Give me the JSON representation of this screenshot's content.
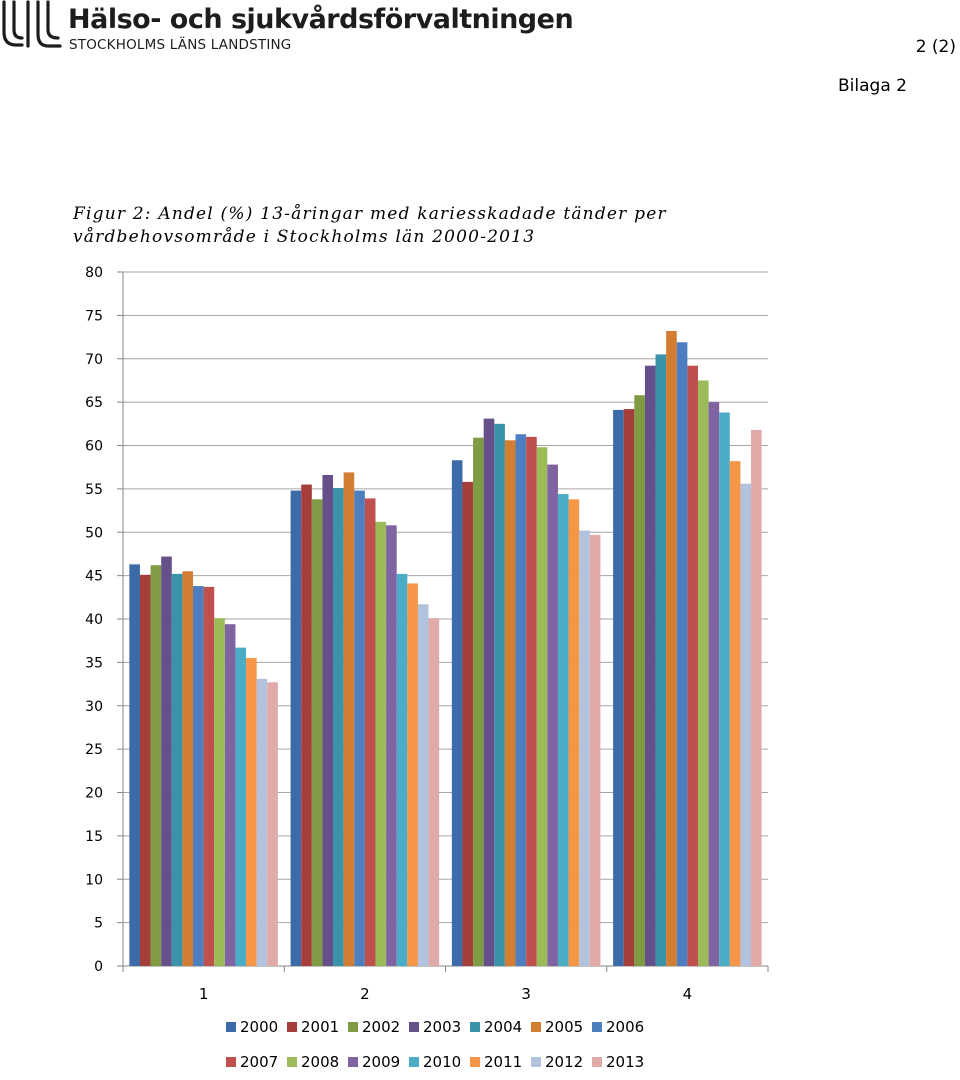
{
  "header": {
    "org_name": "Hälso- och sjukvårdsförvaltningen",
    "org_sub": "STOCKHOLMS LÄNS LANDSTING",
    "page_number": "2 (2)",
    "appendix": "Bilaga 2"
  },
  "figure": {
    "title_line1": "Figur 2: Andel (%) 13-åringar med kariesskadade tänder per",
    "title_line2": "vårdbehovsområde i Stockholms län 2000-2013"
  },
  "chart_data": {
    "type": "bar",
    "categories": [
      "1",
      "2",
      "3",
      "4"
    ],
    "ylim": [
      0,
      80
    ],
    "yticks": [
      0,
      5,
      10,
      15,
      20,
      25,
      30,
      35,
      40,
      45,
      50,
      55,
      60,
      65,
      70,
      75,
      80
    ],
    "ytick_labels": [
      "0",
      "5",
      "10",
      "15",
      "20",
      "25",
      "30",
      "35",
      "40",
      "45",
      "50",
      "55",
      "60",
      "65",
      "70",
      "75",
      "80"
    ],
    "grid": true,
    "legend_position": "bottom",
    "series": [
      {
        "name": "2000",
        "color": "#3d6aa8",
        "values": [
          46.3,
          54.8,
          58.3,
          64.1
        ]
      },
      {
        "name": "2001",
        "color": "#a63f3c",
        "values": [
          45.1,
          55.5,
          55.8,
          64.2
        ]
      },
      {
        "name": "2002",
        "color": "#7f9b43",
        "values": [
          46.2,
          53.8,
          60.9,
          65.8
        ]
      },
      {
        "name": "2003",
        "color": "#66508a",
        "values": [
          47.2,
          56.6,
          63.1,
          69.2
        ]
      },
      {
        "name": "2004",
        "color": "#3a93a8",
        "values": [
          45.2,
          55.1,
          62.5,
          70.5
        ]
      },
      {
        "name": "2005",
        "color": "#d27d32",
        "values": [
          45.5,
          56.9,
          60.6,
          73.2
        ]
      },
      {
        "name": "2006",
        "color": "#4d7fc0",
        "values": [
          43.8,
          54.8,
          61.3,
          71.9
        ]
      },
      {
        "name": "2007",
        "color": "#c0504d",
        "values": [
          43.7,
          53.9,
          61.0,
          69.2
        ]
      },
      {
        "name": "2008",
        "color": "#9bbb59",
        "values": [
          40.1,
          51.2,
          59.8,
          67.5
        ]
      },
      {
        "name": "2009",
        "color": "#8064a2",
        "values": [
          39.4,
          50.8,
          57.8,
          65.0
        ]
      },
      {
        "name": "2010",
        "color": "#4bacc6",
        "values": [
          36.7,
          45.2,
          54.4,
          63.8
        ]
      },
      {
        "name": "2011",
        "color": "#f79646",
        "values": [
          35.5,
          44.1,
          53.8,
          58.2
        ]
      },
      {
        "name": "2012",
        "color": "#b3c3de",
        "values": [
          33.1,
          41.7,
          50.2,
          55.6
        ]
      },
      {
        "name": "2013",
        "color": "#e0aaa9",
        "values": [
          32.7,
          40.1,
          49.7,
          61.8
        ]
      }
    ]
  }
}
